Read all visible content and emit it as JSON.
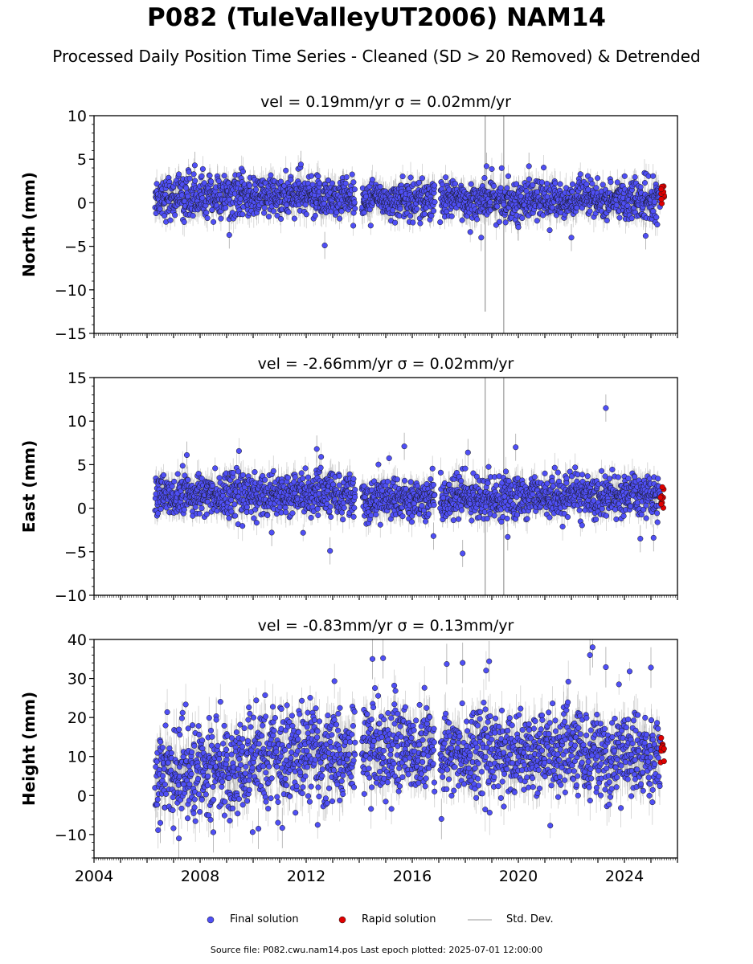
{
  "figure": {
    "title": "P082 (TuleValleyUT2006) NAM14",
    "subtitle": "Processed Daily Position Time Series - Cleaned (SD > 20 Removed) & Detrended",
    "source": "Source file: P082.cwu.nam14.pos  Last epoch plotted: 2025-07-01 12:00:00",
    "colors": {
      "final": "#4f4ff5",
      "rapid": "#e00000",
      "stddev": "#bbbbbb"
    }
  },
  "legend": {
    "final": "Final solution",
    "rapid": "Rapid solution",
    "stddev": "Std. Dev."
  },
  "chart_data": [
    {
      "type": "scatter",
      "title": "vel = 0.19mm/yr   σ = 0.02mm/yr",
      "ylabel": "North (mm)",
      "xlim": [
        2004,
        2026
      ],
      "ylim": [
        -15,
        10
      ],
      "yticks": [
        -15,
        -10,
        -5,
        0,
        5,
        10
      ],
      "xticks": [
        2004,
        2008,
        2012,
        2016,
        2020,
        2024
      ],
      "data_start": 2006.3,
      "rapid_start": 2025.35,
      "gaps": [
        [
          2013.85,
          2014.1
        ],
        [
          2016.85,
          2017.05
        ]
      ],
      "baseline": 0.5,
      "series": [
        {
          "name": "Final solution",
          "segments": [
            {
              "x0": 2006.3,
              "x1": 2013.85,
              "mean": 0.7,
              "sd": 1.2
            },
            {
              "x0": 2014.1,
              "x1": 2016.85,
              "mean": 0.4,
              "sd": 1.1
            },
            {
              "x0": 2017.05,
              "x1": 2025.35,
              "mean": 0.3,
              "sd": 1.1
            }
          ]
        },
        {
          "name": "Rapid solution",
          "x0": 2025.35,
          "x1": 2025.5,
          "mean": 0.8,
          "sd": 0.7
        }
      ],
      "outliers": [
        [
          2012.7,
          -4.9
        ],
        [
          2009.1,
          -3.7
        ],
        [
          2007.8,
          4.3
        ],
        [
          2011.8,
          4.4
        ],
        [
          2018.8,
          4.2
        ],
        [
          2020.4,
          4.2
        ],
        [
          2024.8,
          -3.8
        ],
        [
          2018.6,
          -4.0
        ],
        [
          2020.0,
          -2.8
        ],
        [
          2022.0,
          -4.0
        ]
      ],
      "spikes": [
        [
          2018.75,
          10,
          -12.5
        ],
        [
          2019.45,
          10,
          -15
        ]
      ],
      "yerr_scale": 1.2
    },
    {
      "type": "scatter",
      "title": "vel = -2.66mm/yr   σ = 0.02mm/yr",
      "ylabel": "East (mm)",
      "xlim": [
        2004,
        2026
      ],
      "ylim": [
        -10,
        15
      ],
      "yticks": [
        -10,
        -5,
        0,
        5,
        10,
        15
      ],
      "xticks": [
        2004,
        2008,
        2012,
        2016,
        2020,
        2024
      ],
      "data_start": 2006.3,
      "rapid_start": 2025.35,
      "gaps": [
        [
          2013.85,
          2014.1
        ],
        [
          2016.85,
          2017.05
        ]
      ],
      "baseline": 1.2,
      "series": [
        {
          "name": "Final solution",
          "segments": [
            {
              "x0": 2006.3,
              "x1": 2013.85,
              "mean": 1.6,
              "sd": 1.3
            },
            {
              "x0": 2014.1,
              "x1": 2016.85,
              "mean": 1.2,
              "sd": 1.2
            },
            {
              "x0": 2017.05,
              "x1": 2025.35,
              "mean": 1.3,
              "sd": 1.2
            }
          ]
        },
        {
          "name": "Rapid solution",
          "x0": 2025.35,
          "x1": 2025.5,
          "mean": 1.4,
          "sd": 0.6
        }
      ],
      "outliers": [
        [
          2023.3,
          11.5
        ],
        [
          2012.9,
          -4.9
        ],
        [
          2017.9,
          -5.2
        ],
        [
          2015.7,
          7.1
        ],
        [
          2019.9,
          7.0
        ],
        [
          2012.4,
          6.8
        ],
        [
          2007.5,
          6.1
        ],
        [
          2018.1,
          6.4
        ],
        [
          2024.6,
          -3.5
        ],
        [
          2025.1,
          -3.4
        ],
        [
          2019.6,
          -3.3
        ],
        [
          2010.7,
          -2.8
        ],
        [
          2016.8,
          -3.2
        ]
      ],
      "spikes": [
        [
          2018.75,
          15,
          -10
        ],
        [
          2019.45,
          15,
          -10
        ]
      ],
      "yerr_scale": 1.2
    },
    {
      "type": "scatter",
      "title": "vel = -0.83mm/yr   σ = 0.13mm/yr",
      "ylabel": "Height (mm)",
      "xlim": [
        2004,
        2026
      ],
      "ylim": [
        -16,
        40
      ],
      "yticks": [
        -10,
        0,
        10,
        20,
        30,
        40
      ],
      "xticks": [
        2004,
        2008,
        2012,
        2016,
        2020,
        2024
      ],
      "data_start": 2006.3,
      "rapid_start": 2025.35,
      "gaps": [
        [
          2013.85,
          2014.1
        ],
        [
          2016.85,
          2017.05
        ]
      ],
      "baseline": 10,
      "series": [
        {
          "name": "Final solution",
          "segments": [
            {
              "x0": 2006.3,
              "x1": 2010.0,
              "mean": 6.5,
              "sd": 6.0
            },
            {
              "x0": 2010.0,
              "x1": 2013.85,
              "mean": 10.5,
              "sd": 6.0
            },
            {
              "x0": 2014.1,
              "x1": 2016.85,
              "mean": 12.5,
              "sd": 6.0
            },
            {
              "x0": 2017.05,
              "x1": 2025.35,
              "mean": 11.0,
              "sd": 5.5
            }
          ]
        },
        {
          "name": "Rapid solution",
          "x0": 2025.35,
          "x1": 2025.5,
          "mean": 12.0,
          "sd": 2.5
        }
      ],
      "outliers": [
        [
          2014.5,
          35.0
        ],
        [
          2014.9,
          35.2
        ],
        [
          2017.3,
          33.7
        ],
        [
          2017.9,
          34.0
        ],
        [
          2018.9,
          34.4
        ],
        [
          2022.8,
          38.0
        ],
        [
          2022.7,
          36.0
        ],
        [
          2023.3,
          32.9
        ],
        [
          2025.0,
          32.8
        ],
        [
          2007.2,
          -11.0
        ],
        [
          2010.2,
          -8.5
        ],
        [
          2011.1,
          -8.3
        ],
        [
          2008.5,
          -9.4
        ],
        [
          2006.5,
          -7.0
        ],
        [
          2017.1,
          -6.0
        ]
      ],
      "spikes": [],
      "yerr_scale": 4.0
    }
  ]
}
